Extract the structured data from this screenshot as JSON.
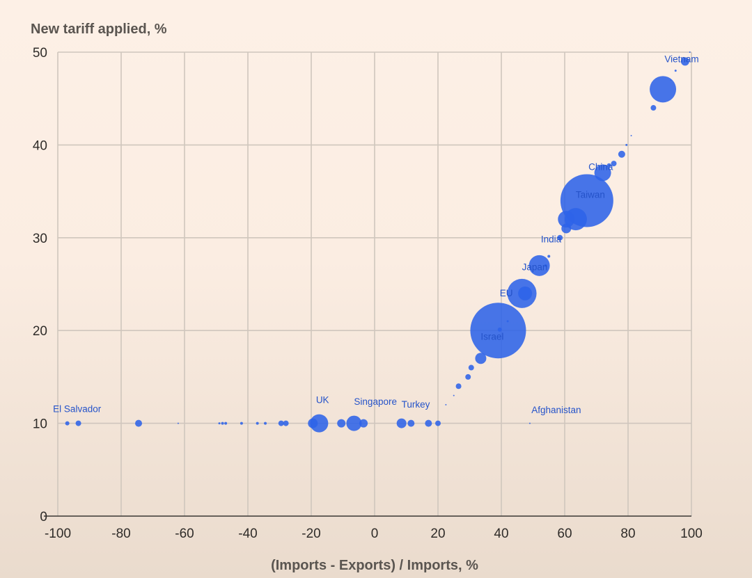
{
  "chart_data": {
    "type": "scatter",
    "title": "",
    "ylabel": "New tariff applied, %",
    "xlabel": "(Imports - Exports) / Imports, %",
    "xlim": [
      -100,
      100
    ],
    "ylim": [
      0,
      50
    ],
    "x_ticks": [
      -100,
      -80,
      -60,
      -40,
      -20,
      0,
      20,
      40,
      60,
      80,
      100
    ],
    "y_ticks": [
      0,
      10,
      20,
      30,
      40,
      50
    ],
    "grid": true,
    "bubble_color": "#2e63e8",
    "size_encoding": "bubble radius (unlabeled)",
    "labels": [
      {
        "text": "Vietnam",
        "x": 91.5,
        "y": 48.9
      },
      {
        "text": "China",
        "x": 67.5,
        "y": 37.3
      },
      {
        "text": "Taiwan",
        "x": 63.5,
        "y": 34.3
      },
      {
        "text": "India",
        "x": 52.5,
        "y": 29.5
      },
      {
        "text": "Japan",
        "x": 46.5,
        "y": 26.5
      },
      {
        "text": "EU",
        "x": 39.5,
        "y": 23.7
      },
      {
        "text": "Israel",
        "x": 33.5,
        "y": 19.0
      },
      {
        "text": "El Salvador",
        "x": -101.5,
        "y": 11.2
      },
      {
        "text": "UK",
        "x": -18.5,
        "y": 12.2
      },
      {
        "text": "Singapore",
        "x": -6.5,
        "y": 12.0
      },
      {
        "text": "Turkey",
        "x": 8.5,
        "y": 11.7
      },
      {
        "text": "Afghanistan",
        "x": 49.5,
        "y": 11.1
      }
    ],
    "points": [
      {
        "x": 98,
        "y": 49,
        "r": 6
      },
      {
        "x": 99.5,
        "y": 50,
        "r": 1
      },
      {
        "x": 95,
        "y": 48,
        "r": 1.5
      },
      {
        "x": 91,
        "y": 46,
        "r": 19
      },
      {
        "x": 93.5,
        "y": 47,
        "r": 1
      },
      {
        "x": 88,
        "y": 44,
        "r": 4
      },
      {
        "x": 81,
        "y": 41,
        "r": 1
      },
      {
        "x": 79.5,
        "y": 40,
        "r": 1.5
      },
      {
        "x": 78,
        "y": 39,
        "r": 5
      },
      {
        "x": 75.5,
        "y": 38,
        "r": 4
      },
      {
        "x": 74,
        "y": 37.8,
        "r": 3
      },
      {
        "x": 72,
        "y": 37,
        "r": 12
      },
      {
        "x": 67,
        "y": 34,
        "r": 38
      },
      {
        "x": 63.5,
        "y": 32,
        "r": 16
      },
      {
        "x": 60.5,
        "y": 32,
        "r": 12
      },
      {
        "x": 60.5,
        "y": 31,
        "r": 7
      },
      {
        "x": 58.5,
        "y": 30,
        "r": 4
      },
      {
        "x": 55,
        "y": 28,
        "r": 2
      },
      {
        "x": 52,
        "y": 27,
        "r": 15
      },
      {
        "x": 54,
        "y": 27,
        "r": 2
      },
      {
        "x": 46.5,
        "y": 24,
        "r": 21
      },
      {
        "x": 47.5,
        "y": 24,
        "r": 10
      },
      {
        "x": 42,
        "y": 21,
        "r": 1.5
      },
      {
        "x": 39,
        "y": 20,
        "r": 40
      },
      {
        "x": 39.5,
        "y": 20.1,
        "r": 3
      },
      {
        "x": 33.5,
        "y": 17,
        "r": 8
      },
      {
        "x": 30.5,
        "y": 16,
        "r": 4
      },
      {
        "x": 29.5,
        "y": 15,
        "r": 4
      },
      {
        "x": 26.5,
        "y": 14,
        "r": 4
      },
      {
        "x": 25,
        "y": 13,
        "r": 1
      },
      {
        "x": 22.5,
        "y": 12,
        "r": 1
      },
      {
        "x": 20,
        "y": 10,
        "r": 4
      },
      {
        "x": 17,
        "y": 10,
        "r": 5
      },
      {
        "x": 11.5,
        "y": 10,
        "r": 5
      },
      {
        "x": 8.5,
        "y": 10,
        "r": 7
      },
      {
        "x": -3.5,
        "y": 10,
        "r": 6
      },
      {
        "x": -6.5,
        "y": 10,
        "r": 11
      },
      {
        "x": -10.5,
        "y": 10,
        "r": 6
      },
      {
        "x": -17.5,
        "y": 10,
        "r": 13
      },
      {
        "x": -19.5,
        "y": 10,
        "r": 7
      },
      {
        "x": -28,
        "y": 10,
        "r": 4
      },
      {
        "x": -29.5,
        "y": 10,
        "r": 4
      },
      {
        "x": -34.5,
        "y": 10,
        "r": 2
      },
      {
        "x": -37,
        "y": 10,
        "r": 2
      },
      {
        "x": -42,
        "y": 10,
        "r": 2
      },
      {
        "x": -47,
        "y": 10,
        "r": 2
      },
      {
        "x": -48,
        "y": 10,
        "r": 2
      },
      {
        "x": -49,
        "y": 10,
        "r": 1.5
      },
      {
        "x": -62,
        "y": 10,
        "r": 1
      },
      {
        "x": -74.5,
        "y": 10,
        "r": 5
      },
      {
        "x": -93.5,
        "y": 10,
        "r": 4
      },
      {
        "x": -97,
        "y": 10,
        "r": 3
      },
      {
        "x": 49,
        "y": 10,
        "r": 1
      }
    ]
  }
}
